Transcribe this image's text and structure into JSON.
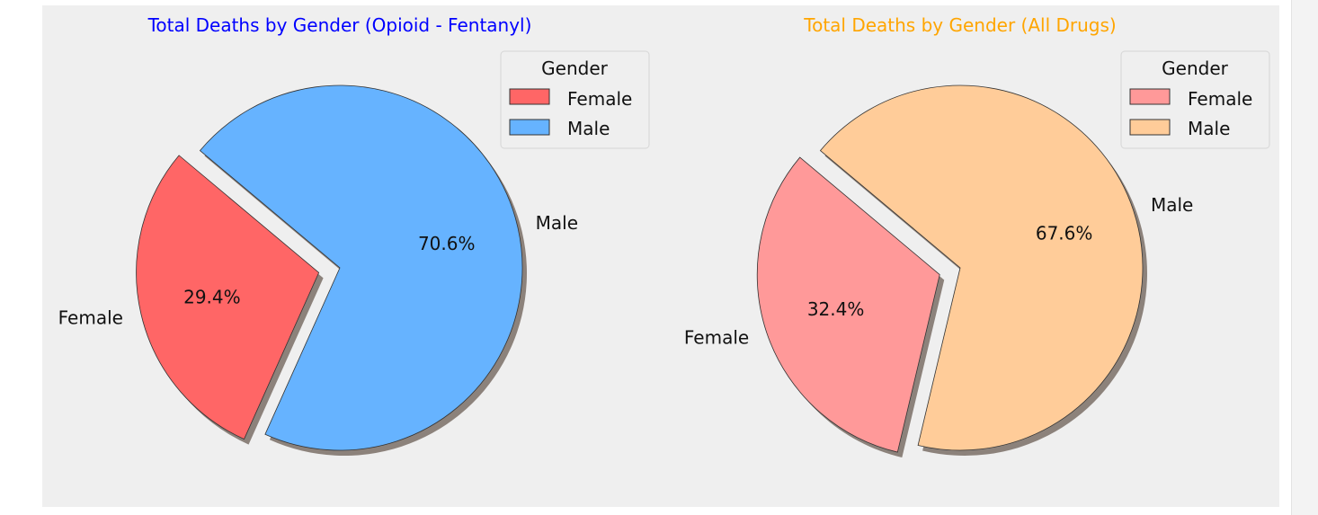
{
  "chart_data": [
    {
      "type": "pie",
      "title": "Total Deaths by Gender (Opioid - Fentanyl)",
      "title_color": "#0000ff",
      "categories": [
        "Female",
        "Male"
      ],
      "values": [
        29.4,
        70.6
      ],
      "value_labels": [
        "29.4%",
        "70.6%"
      ],
      "colors": [
        "#ff6666",
        "#66b3ff"
      ],
      "exploded": [
        "Female"
      ],
      "shadow": true,
      "legend": {
        "title": "Gender",
        "placement": "upper-right",
        "entries": [
          "Female",
          "Male"
        ]
      }
    },
    {
      "type": "pie",
      "title": "Total Deaths by Gender (All Drugs)",
      "title_color": "#ffa500",
      "categories": [
        "Female",
        "Male"
      ],
      "values": [
        32.4,
        67.6
      ],
      "value_labels": [
        "32.4%",
        "67.6%"
      ],
      "colors": [
        "#ff9999",
        "#ffcc99"
      ],
      "exploded": [
        "Female"
      ],
      "shadow": true,
      "legend": {
        "title": "Gender",
        "placement": "upper-right",
        "entries": [
          "Female",
          "Male"
        ]
      }
    }
  ],
  "colors": {
    "figure_background": "#efefef",
    "edge": "#333333",
    "shadow": "#7a6e66"
  }
}
